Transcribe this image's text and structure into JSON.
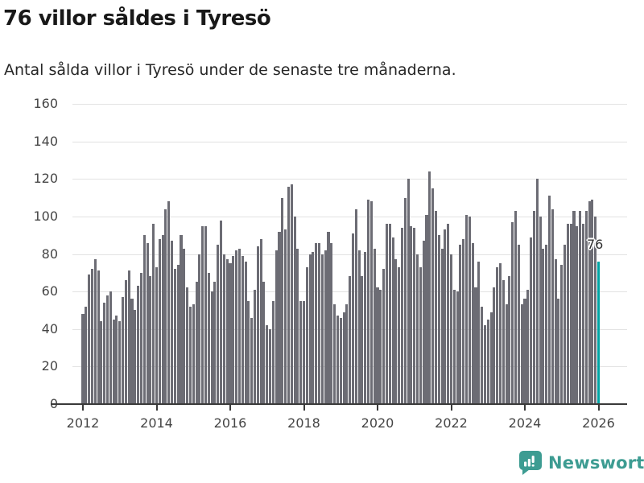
{
  "header": {
    "title": "76 villor såldes i Tyresö",
    "subtitle": "Antal sålda villor i Tyresö under de senaste tre månaderna."
  },
  "annotation": {
    "label": "76"
  },
  "branding": {
    "name": "Newsworthy",
    "icon": "newsworthy-speech-bubble-chart-icon",
    "color": "#3d9c92"
  },
  "colors": {
    "bar": "#6c6c74",
    "highlight": "#00a3a3",
    "grid": "#e2e2e2",
    "axis": "#3a3a3a",
    "tick_text": "#454545"
  },
  "chart_data": {
    "type": "bar",
    "title": "76 villor såldes i Tyresö",
    "subtitle": "Antal sålda villor i Tyresö under de senaste tre månaderna.",
    "unit": "sålda villor (rullande tre månader)",
    "frequency": "monthly",
    "x_start": "2012-01",
    "x_end": "2026-01",
    "ylim": [
      0,
      160
    ],
    "grid": true,
    "y_ticks": [
      0,
      20,
      40,
      60,
      80,
      100,
      120,
      140,
      160
    ],
    "x_tick_labels": [
      "2012",
      "2014",
      "2016",
      "2018",
      "2020",
      "2022",
      "2024",
      "2026"
    ],
    "x_tick_indices": [
      0,
      24,
      48,
      72,
      96,
      120,
      144,
      168
    ],
    "highlight_last": true,
    "last_value": 76,
    "values": [
      48,
      52,
      69,
      72,
      77,
      71,
      44,
      54,
      58,
      60,
      45,
      47,
      44,
      57,
      66,
      71,
      56,
      50,
      63,
      70,
      90,
      86,
      68,
      96,
      73,
      88,
      90,
      104,
      108,
      87,
      72,
      74,
      90,
      83,
      62,
      52,
      53,
      65,
      80,
      95,
      95,
      70,
      60,
      65,
      85,
      98,
      80,
      77,
      75,
      79,
      82,
      83,
      79,
      76,
      55,
      46,
      61,
      84,
      88,
      65,
      42,
      40,
      55,
      82,
      92,
      110,
      93,
      116,
      117,
      100,
      83,
      55,
      55,
      73,
      80,
      81,
      86,
      86,
      80,
      82,
      92,
      86,
      53,
      47,
      46,
      49,
      53,
      68,
      91,
      104,
      82,
      68,
      81,
      109,
      108,
      83,
      62,
      61,
      72,
      96,
      96,
      89,
      77,
      73,
      94,
      110,
      120,
      95,
      94,
      80,
      73,
      87,
      101,
      124,
      115,
      103,
      90,
      83,
      93,
      96,
      80,
      61,
      60,
      85,
      88,
      101,
      100,
      86,
      62,
      76,
      52,
      42,
      45,
      49,
      62,
      73,
      75,
      66,
      53,
      68,
      97,
      103,
      85,
      53,
      56,
      61,
      89,
      103,
      120,
      100,
      83,
      85,
      111,
      104,
      77,
      56,
      74,
      85,
      96,
      96,
      103,
      95,
      103,
      96,
      103,
      108,
      109,
      100,
      76
    ]
  }
}
